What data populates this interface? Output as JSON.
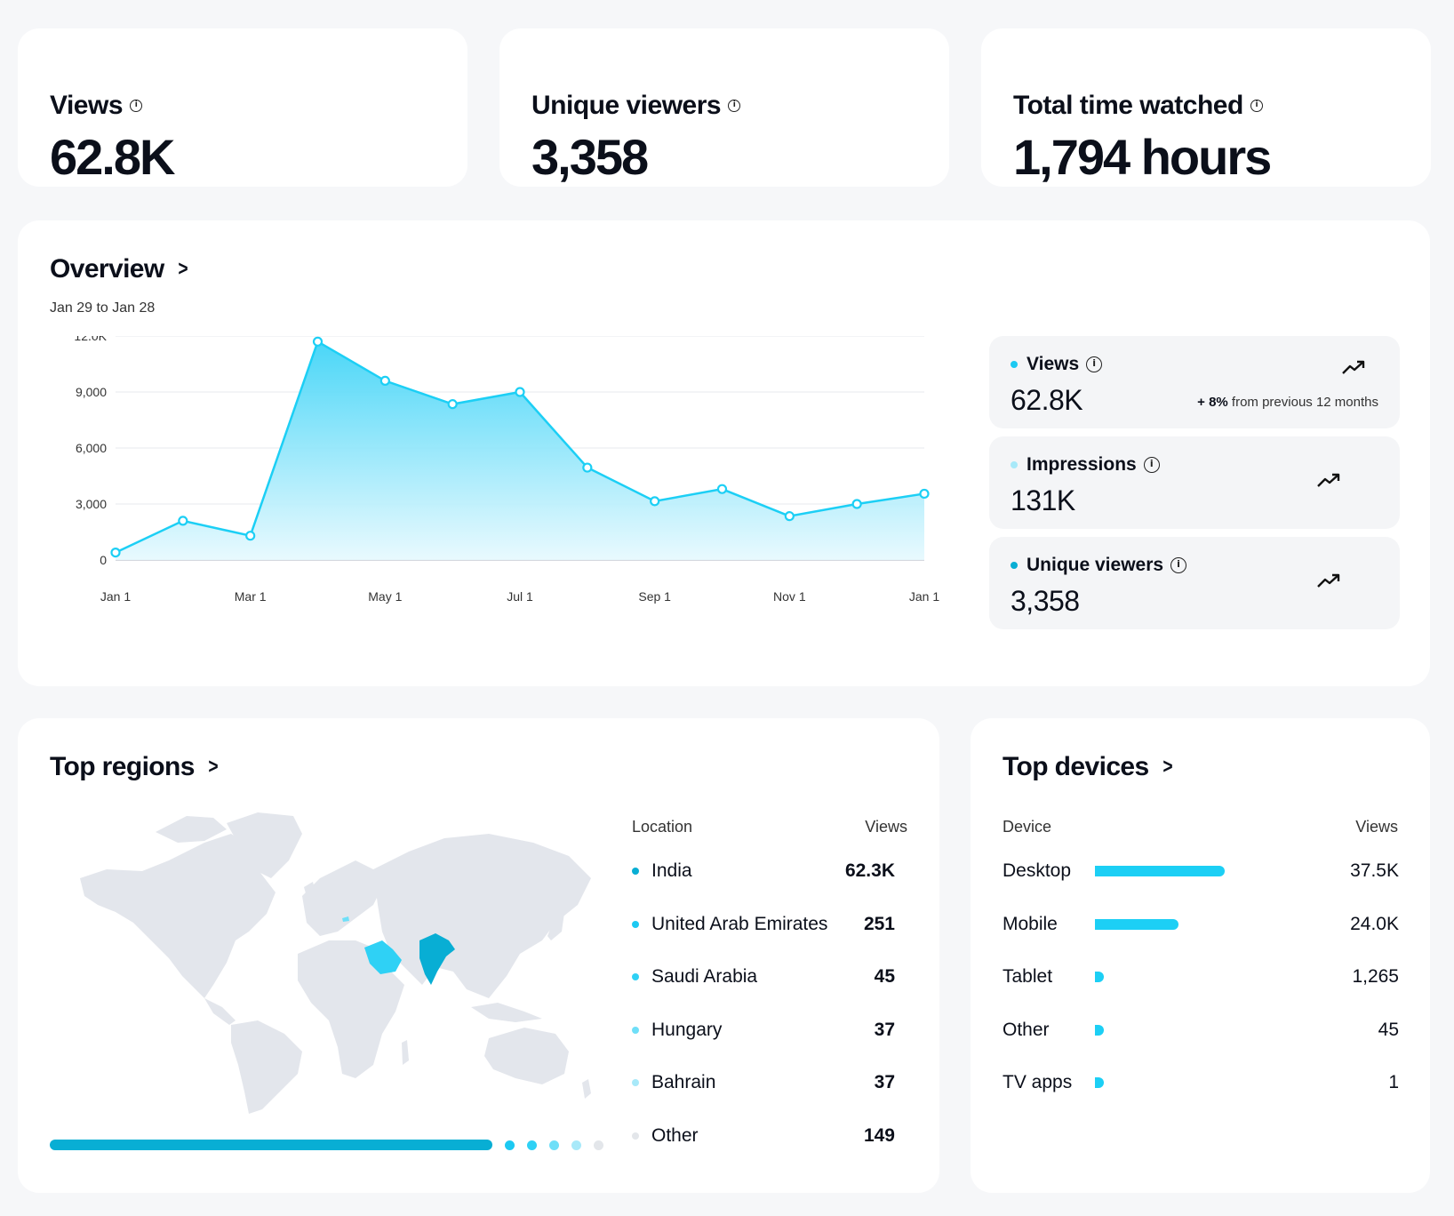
{
  "stats": [
    {
      "label": "Views",
      "value": "62.8K"
    },
    {
      "label": "Unique viewers",
      "value": "3,358"
    },
    {
      "label": "Total time watched",
      "value": "1,794 hours"
    }
  ],
  "overview": {
    "title": "Overview",
    "date_range": "Jan 29 to Jan 28",
    "metrics": [
      {
        "label": "Views",
        "value": "62.8K",
        "change_bold": "+ 8%",
        "change_rest": " from previous 12 months",
        "dot_color": "#1cc9f2"
      },
      {
        "label": "Impressions",
        "value": "131K",
        "dot_color": "#a8e9f9"
      },
      {
        "label": "Unique viewers",
        "value": "3,358",
        "dot_color": "#08aed4"
      }
    ]
  },
  "chart_data": {
    "type": "area",
    "title": "",
    "xlabel": "",
    "ylabel": "",
    "x_tick_labels": [
      "Jan 1",
      "Mar 1",
      "May 1",
      "Jul 1",
      "Sep 1",
      "Nov 1",
      "Jan 1"
    ],
    "y_tick_labels": [
      "0",
      "3,000",
      "6,000",
      "9,000",
      "12.0K"
    ],
    "y_ticks": [
      0,
      3000,
      6000,
      9000,
      12000
    ],
    "ylim": [
      0,
      12000
    ],
    "grid": true,
    "series": [
      {
        "points": [
          {
            "x": "Jan 1",
            "y": 400
          },
          {
            "x": "Feb 1",
            "y": 2100
          },
          {
            "x": "Mar 1",
            "y": 1300
          },
          {
            "x": "Apr 1",
            "y": 11700
          },
          {
            "x": "May 1",
            "y": 9600
          },
          {
            "x": "Jun 1",
            "y": 8350
          },
          {
            "x": "Jul 1",
            "y": 9000
          },
          {
            "x": "Aug 1",
            "y": 4950
          },
          {
            "x": "Sep 1",
            "y": 3150
          },
          {
            "x": "Oct 1",
            "y": 3800
          },
          {
            "x": "Nov 1",
            "y": 2350
          },
          {
            "x": "Dec 1",
            "y": 3000
          },
          {
            "x": "Jan 1",
            "y": 3550
          }
        ],
        "color": "#1ccff5"
      }
    ]
  },
  "regions": {
    "title": "Top regions",
    "col_location": "Location",
    "col_views": "Views",
    "rows": [
      {
        "name": "India",
        "views": "62.3K",
        "color": "#08aed4"
      },
      {
        "name": "United Arab Emirates",
        "views": "251",
        "color": "#1cc9f2"
      },
      {
        "name": "Saudi Arabia",
        "views": "45",
        "color": "#2fd1f5"
      },
      {
        "name": "Hungary",
        "views": "37",
        "color": "#6fdff8"
      },
      {
        "name": "Bahrain",
        "views": "37",
        "color": "#a8e9f9"
      },
      {
        "name": "Other",
        "views": "149",
        "color": "#e3e6ea"
      }
    ],
    "highlight_colors": {
      "india": "#08aed4",
      "saudi": "#2fd1f5",
      "land": "#e3e6ec"
    }
  },
  "devices": {
    "title": "Top devices",
    "col_device": "Device",
    "col_views": "Views",
    "rows": [
      {
        "name": "Desktop",
        "views": "37.5K",
        "share": 0.61
      },
      {
        "name": "Mobile",
        "views": "24.0K",
        "share": 0.39
      },
      {
        "name": "Tablet",
        "views": "1,265",
        "share": 0.02
      },
      {
        "name": "Other",
        "views": "45",
        "share": 0.001
      },
      {
        "name": "TV apps",
        "views": "1",
        "share": 0.0
      }
    ]
  }
}
